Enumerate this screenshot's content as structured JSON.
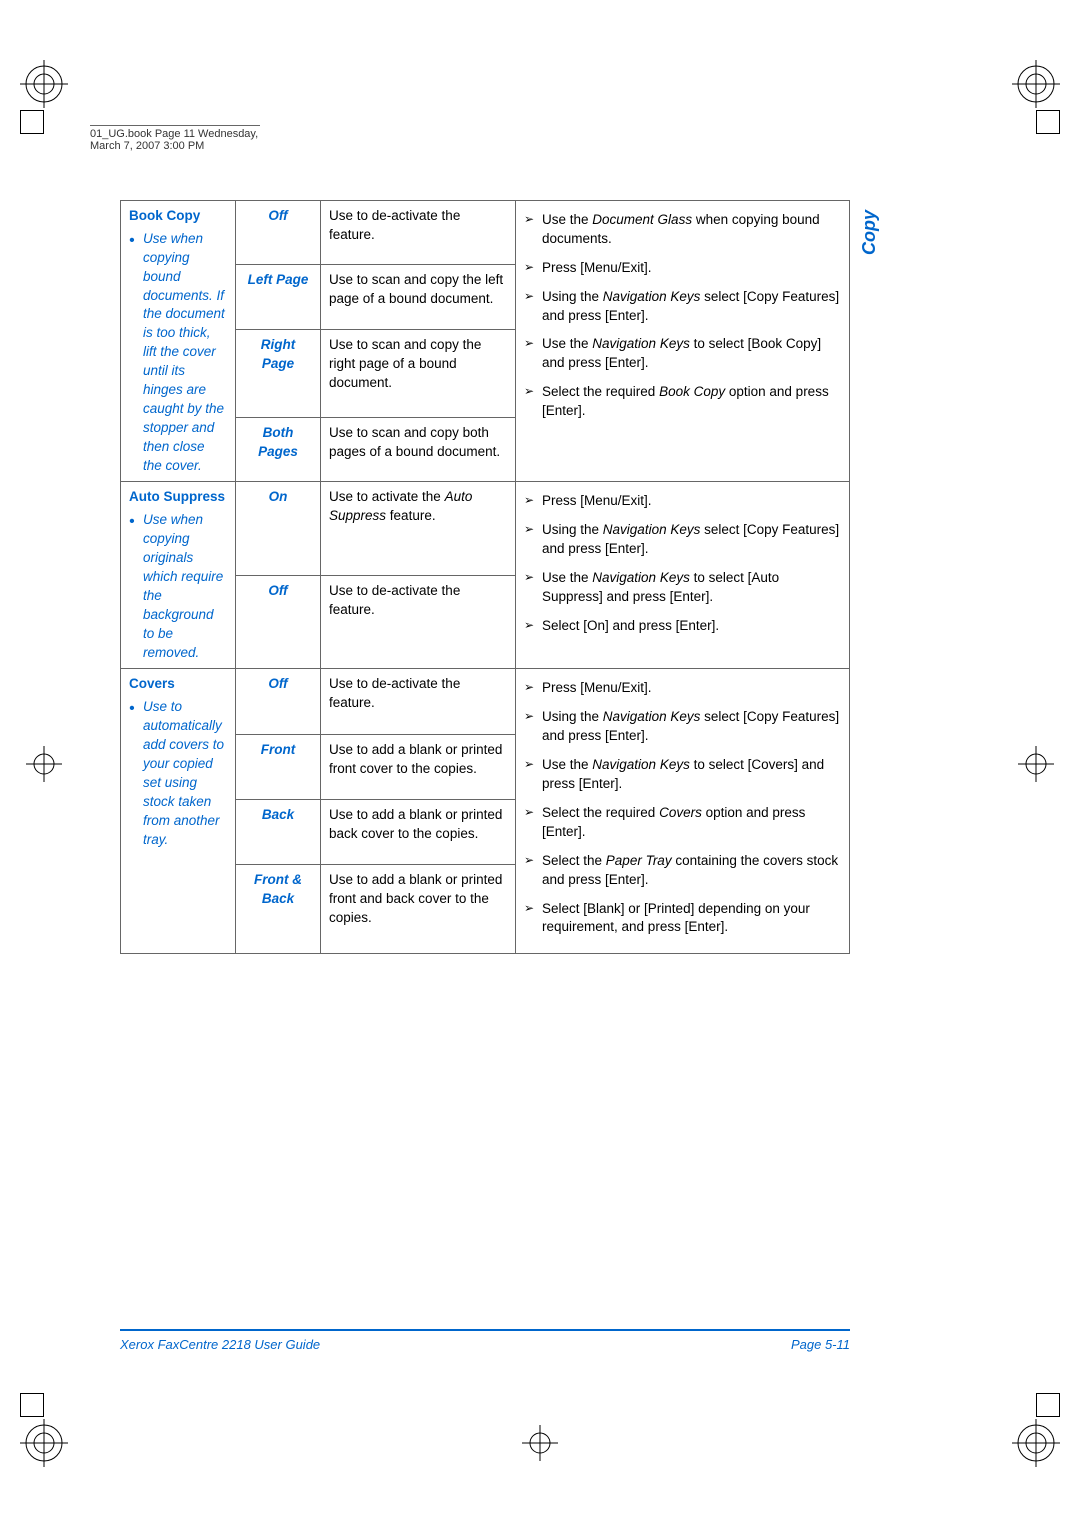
{
  "header_text": "01_UG.book  Page 11  Wednesday, March 7, 2007  3:00 PM",
  "side_tab": "Copy",
  "footer_left": "Xerox FaxCentre 2218 User Guide",
  "footer_right": "Page 5-11",
  "sections": [
    {
      "title": "Book Copy",
      "desc": "Use when copying bound documents. If the document is too thick, lift the cover until its hinges are caught by the stopper and then close the cover.",
      "options": [
        {
          "name": "Off",
          "text": "Use to de-activate the feature."
        },
        {
          "name": "Left Page",
          "text": "Use to scan and copy the left page of a bound document."
        },
        {
          "name": "Right Page",
          "text": "Use to scan and copy the right page of a bound document."
        },
        {
          "name": "Both Pages",
          "text": "Use to scan and copy both pages of a bound document."
        }
      ],
      "steps": [
        {
          "pre": "Use the ",
          "ital": "Document Glass",
          "post": " when copying bound documents."
        },
        {
          "pre": "Press [Menu/Exit]."
        },
        {
          "pre": "Using the ",
          "ital": "Navigation Keys",
          "post": " select [Copy Features] and press [Enter]."
        },
        {
          "pre": "Use the ",
          "ital": "Navigation Keys",
          "post": " to select [Book Copy] and press [Enter]."
        },
        {
          "pre": "Select the required ",
          "ital": "Book Copy",
          "post": " option and press [Enter]."
        }
      ]
    },
    {
      "title": "Auto Suppress",
      "desc": "Use when copying originals which require the background to be removed.",
      "options": [
        {
          "name": "On",
          "text_pre": "Use to activate the ",
          "text_ital": "Auto Suppress",
          "text_post": " feature."
        },
        {
          "name": "Off",
          "text": "Use to de-activate the feature."
        }
      ],
      "steps": [
        {
          "pre": "Press [Menu/Exit]."
        },
        {
          "pre": "Using the ",
          "ital": "Navigation Keys",
          "post": " select [Copy Features] and press [Enter]."
        },
        {
          "pre": "Use the ",
          "ital": "Navigation Keys",
          "post": " to select [Auto Suppress] and press [Enter]."
        },
        {
          "pre": "Select [On] and press [Enter]."
        }
      ]
    },
    {
      "title": "Covers",
      "desc": "Use to automatically add covers to your copied set using stock taken from another tray.",
      "options": [
        {
          "name": "Off",
          "text": "Use to de-activate the feature."
        },
        {
          "name": "Front",
          "text": "Use to add a blank or printed front cover to the copies."
        },
        {
          "name": "Back",
          "text": "Use to add a blank or printed back cover to the copies."
        },
        {
          "name": "Front & Back",
          "text": "Use to add a blank or printed front and back cover to the copies."
        }
      ],
      "steps": [
        {
          "pre": "Press [Menu/Exit]."
        },
        {
          "pre": "Using the ",
          "ital": "Navigation Keys",
          "post": " select [Copy Features] and press [Enter]."
        },
        {
          "pre": "Use the ",
          "ital": "Navigation Keys",
          "post": " to select [Covers] and press [Enter]."
        },
        {
          "pre": "Select the required ",
          "ital": "Covers",
          "post": " option and press [Enter]."
        },
        {
          "pre": "Select the ",
          "ital": "Paper Tray",
          "post": " containing the covers stock and press [Enter]."
        },
        {
          "pre": "Select [Blank] or [Printed] depending on your requirement, and press [Enter]."
        }
      ]
    }
  ]
}
